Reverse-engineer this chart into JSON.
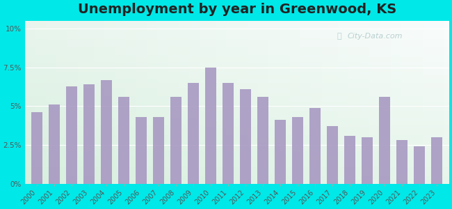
{
  "title": "Unemployment by year in Greenwood, KS",
  "years": [
    2000,
    2001,
    2002,
    2003,
    2004,
    2005,
    2006,
    2007,
    2008,
    2009,
    2010,
    2011,
    2012,
    2013,
    2014,
    2015,
    2016,
    2017,
    2018,
    2019,
    2020,
    2021,
    2022,
    2023
  ],
  "values": [
    4.6,
    5.1,
    6.3,
    6.4,
    6.7,
    5.6,
    4.3,
    4.3,
    5.6,
    6.5,
    7.5,
    6.5,
    6.1,
    5.6,
    4.1,
    4.3,
    4.9,
    3.7,
    3.1,
    3.0,
    5.6,
    2.8,
    2.4,
    3.0
  ],
  "bar_color": "#a899c2",
  "background_outer": "#00e8e8",
  "yticks": [
    0,
    2.5,
    5.0,
    7.5,
    10.0
  ],
  "ytick_labels": [
    "0%",
    "2.5%",
    "5%",
    "7.5%",
    "10%"
  ],
  "ylim": [
    0,
    10.5
  ],
  "title_fontsize": 14,
  "tick_fontsize": 7.5,
  "watermark": "City-Data.com",
  "grid_color": "#ccddcc",
  "bg_top_color": "#e0f0e8",
  "bg_bottom_color": "#f0f8f0"
}
